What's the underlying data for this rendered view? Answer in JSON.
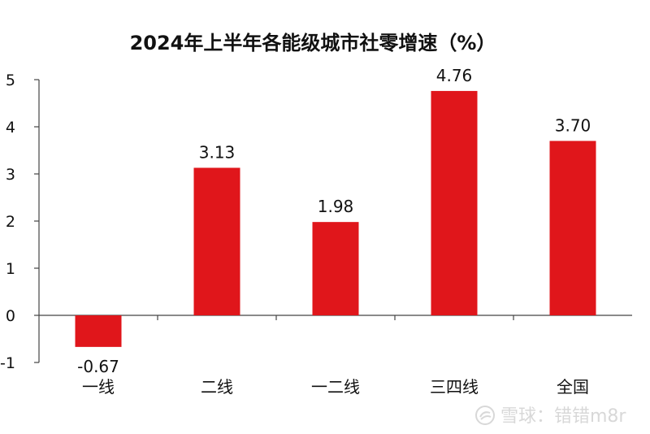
{
  "chart_data": {
    "type": "bar",
    "title": "2024年上半年各能级城市社零增速（%）",
    "xlabel": "",
    "ylabel": "",
    "categories": [
      "一线",
      "二线",
      "一二线",
      "三四线",
      "全国"
    ],
    "values": [
      -0.67,
      3.13,
      1.98,
      4.76,
      3.7
    ],
    "data_labels": [
      "-0.67",
      "3.13",
      "1.98",
      "4.76",
      "3.70"
    ],
    "ylim": [
      -1,
      5
    ],
    "yticks": [
      5,
      4,
      3,
      2,
      1,
      0,
      -1
    ],
    "bar_color": "#e0161b",
    "grid": false,
    "legend": "none"
  },
  "watermark": {
    "text": "雪球：错错m8r",
    "icon": "snowball-logo-icon"
  }
}
